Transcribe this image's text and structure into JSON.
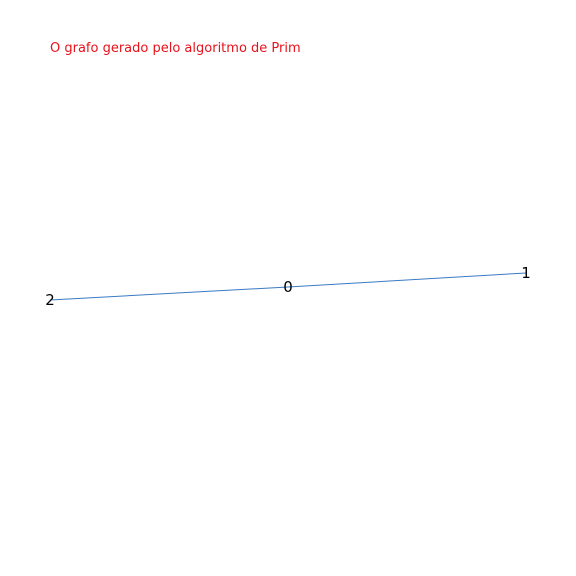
{
  "caption": "O grafo gerado pelo algoritmo de Prim",
  "graph": {
    "nodes": [
      {
        "id": "0",
        "label": "0"
      },
      {
        "id": "1",
        "label": "1"
      },
      {
        "id": "2",
        "label": "2"
      }
    ],
    "edges": [
      {
        "from": "2",
        "to": "0"
      },
      {
        "from": "0",
        "to": "1"
      }
    ],
    "colors": {
      "edge": "#3a7ac4",
      "caption": "#e8121b",
      "label": "#000000"
    }
  }
}
